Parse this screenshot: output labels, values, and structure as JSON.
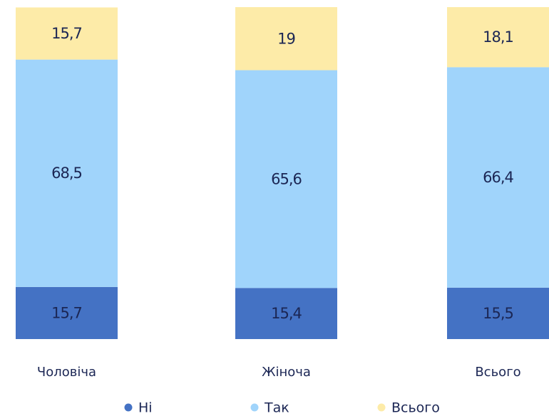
{
  "chart_data": {
    "type": "stacked_bar",
    "categories": [
      "Чоловіча",
      "Жіноча",
      "Всього"
    ],
    "series": [
      {
        "name": "Ні",
        "color": "#4472c4",
        "values": [
          15.7,
          15.4,
          15.5
        ],
        "value_labels": [
          "15,7",
          "15,4",
          "15,5"
        ]
      },
      {
        "name": "Так",
        "color": "#a0d4fb",
        "values": [
          68.5,
          65.6,
          66.4
        ],
        "value_labels": [
          "68,5",
          "65,6",
          "66,4"
        ]
      },
      {
        "name": "Всього",
        "color": "#fdeba8",
        "values": [
          15.7,
          19,
          18.1
        ],
        "value_labels": [
          "15,7",
          "19",
          "18,1"
        ]
      }
    ],
    "ylim": [
      0,
      100
    ]
  }
}
